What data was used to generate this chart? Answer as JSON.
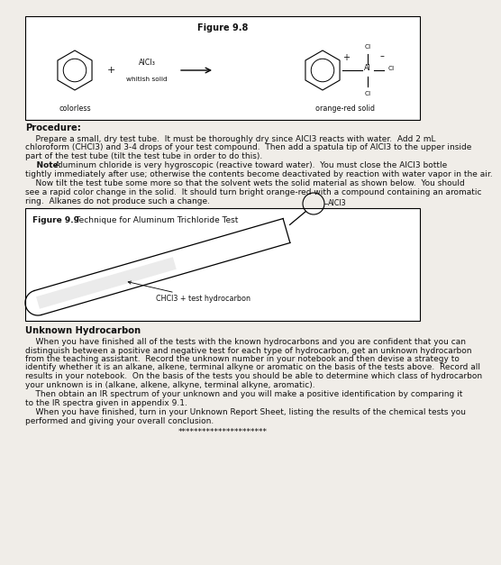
{
  "background_color": "#f5f5f0",
  "page_bg": "#f0ede8",
  "white": "#ffffff",
  "black": "#111111",
  "gray_light": "#cccccc",
  "figure98_title": "Figure 9.8",
  "benzene_label_left": "colorless",
  "alcl3_label": "AlCl3",
  "whitish_label": "whitish solid",
  "product_label": "orange-red solid",
  "procedure_header": "Procedure:",
  "procedure_line1": "    Prepare a small, dry test tube.  It must be thoroughly dry since AlCl",
  "procedure_line1b": "3",
  "procedure_line1c": " reacts with water.  Add 2 mL",
  "procedure_line2": "chloroform (CHCl",
  "procedure_line2b": "3",
  "procedure_line2c": ") and 3-4 drops of your test compound.  Then add a spatula tip of AlCl",
  "procedure_line2d": "3",
  "procedure_line2e": " to the upper inside",
  "procedure_line3": "part of the test tube (tilt the test tube in order to do this).",
  "note_label": "    Note:",
  "note_text": " Aluminum chloride is very hygroscopic (reactive toward water).  You must close the AlCl",
  "note_text_sub": "3",
  "note_text2": " bottle",
  "note_line2": "tightly immediately after use; otherwise the contents become deactivated by reaction with water vapor in the air.",
  "para2_line1": "    Now tilt the test tube some more so that the solvent wets the solid material as shown below.  You should",
  "para2_line2": "see a rapid color change in the solid.  It should turn bright orange-red with a compound containing an aromatic",
  "para2_line3": "ring.  Alkanes do not produce such a change.",
  "figure99_caption_bold": "Figure 9.9",
  "figure99_caption_normal": "  Technique for Aluminum Trichloride Test",
  "alcl3_ann": "AlCl3",
  "chcl3_ann": "CHCl3 + test hydrocarbon",
  "unknown_header": "Unknown Hydrocarbon",
  "unk_line1": "    When you have finished all of the tests with the known hydrocarbons and you are confident that you can",
  "unk_line2": "distinguish between a positive and negative test for each type of hydrocarbon, get an unknown hydrocarbon",
  "unk_line3": "from the teaching assistant.  Record the unknown number in your notebook and then devise a strategy to",
  "unk_line4": "identify whether it is an alkane, alkene, terminal alkyne or aromatic on the basis of the tests above.  Record all",
  "unk_line5": "results in your notebook.  On the basis of the tests you should be able to determine which class of hydrocarbon",
  "unk_line6": "your unknown is in (alkane, alkene, alkyne, terminal alkyne, aromatic).",
  "unk_line7": "    Then obtain an IR spectrum of your unknown and you will make a positive identification by comparing it",
  "unk_line8": "to the IR spectra given in appendix 9.1.",
  "unk_line9": "    When you have finished, turn in your Unknown Report Sheet, listing the results of the chemical tests you",
  "unk_line10": "performed and giving your overall conclusion.",
  "stars": "**********************",
  "fs_body": 6.5,
  "fs_bold_header": 7.2,
  "fs_fig_title": 7.0,
  "fs_small": 5.8
}
